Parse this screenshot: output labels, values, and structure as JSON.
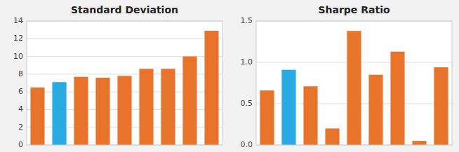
{
  "chart_data": [
    {
      "type": "bar",
      "title": "Standard Deviation",
      "categories": [
        null,
        null,
        null,
        null,
        null,
        null,
        null,
        null,
        null
      ],
      "values": [
        6.5,
        7.1,
        7.7,
        7.6,
        7.8,
        8.6,
        8.6,
        10.0,
        12.9
      ],
      "colors": [
        "#E8732A",
        "#29ABE2",
        "#E8732A",
        "#E8732A",
        "#E8732A",
        "#E8732A",
        "#E8732A",
        "#E8732A",
        "#E8732A"
      ],
      "ylim": [
        0,
        14
      ],
      "yticks": [
        0,
        2,
        4,
        6,
        8,
        10,
        12,
        14
      ],
      "grid": true,
      "tick_labels": "y"
    },
    {
      "type": "bar",
      "title": "Sharpe Ratio",
      "categories": [
        null,
        null,
        null,
        null,
        null,
        null,
        null,
        null,
        null
      ],
      "values": [
        0.66,
        0.91,
        0.71,
        0.2,
        1.38,
        0.85,
        1.13,
        0.05,
        0.94
      ],
      "colors": [
        "#E8732A",
        "#29ABE2",
        "#E8732A",
        "#E8732A",
        "#E8732A",
        "#E8732A",
        "#E8732A",
        "#E8732A",
        "#E8732A"
      ],
      "ylim": [
        0,
        1.5
      ],
      "yticks": [
        {
          "value": 0,
          "label": "0.0"
        },
        0.5,
        {
          "value": 1.0,
          "label": "1.0"
        },
        1.5
      ],
      "grid": true,
      "tick_labels": "y"
    }
  ]
}
